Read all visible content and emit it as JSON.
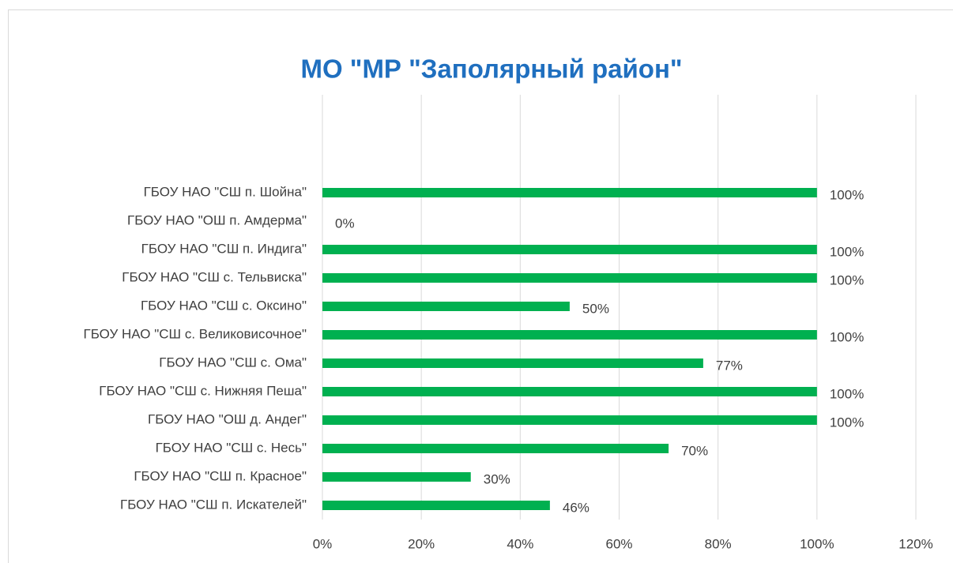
{
  "chart_data": {
    "type": "bar",
    "orientation": "horizontal",
    "title": "МО \"МР \"Заполярный район\"",
    "categories": [
      "ГБОУ НАО \"СШ п. Шойна\"",
      "ГБОУ НАО \"ОШ п. Амдерма\"",
      "ГБОУ НАО \"СШ п. Индига\"",
      "ГБОУ НАО \"СШ с. Тельвиска\"",
      "ГБОУ НАО \"СШ с. Оксино\"",
      "ГБОУ НАО \"СШ с. Великовисочное\"",
      "ГБОУ НАО \"СШ с. Ома\"",
      "ГБОУ НАО \"СШ с. Нижняя Пеша\"",
      "ГБОУ НАО \"ОШ д. Андег\"",
      "ГБОУ НАО \"СШ с. Несь\"",
      "ГБОУ НАО \"СШ п. Красное\"",
      "ГБОУ НАО \"СШ п. Искателей\""
    ],
    "values": [
      100,
      0,
      100,
      100,
      50,
      100,
      77,
      100,
      100,
      70,
      30,
      46
    ],
    "value_labels": [
      "100%",
      "0%",
      "100%",
      "100%",
      "50%",
      "100%",
      "77%",
      "100%",
      "100%",
      "70%",
      "30%",
      "46%"
    ],
    "color": "#00b050",
    "xlim": [
      0,
      120
    ],
    "xticks": [
      {
        "value": 0,
        "label": "0%"
      },
      {
        "value": 20,
        "label": "20%"
      },
      {
        "value": 40,
        "label": "40%"
      },
      {
        "value": 60,
        "label": "60%"
      },
      {
        "value": 80,
        "label": "80%"
      },
      {
        "value": 100,
        "label": "100%"
      },
      {
        "value": 120,
        "label": "120%"
      }
    ],
    "grid": true
  }
}
